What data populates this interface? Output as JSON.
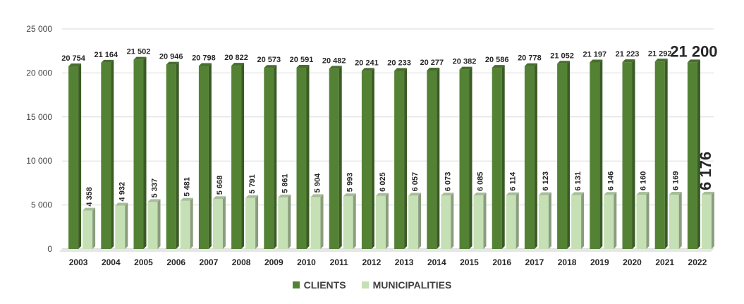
{
  "chart_data": {
    "type": "bar",
    "categories": [
      "2003",
      "2004",
      "2005",
      "2006",
      "2007",
      "2008",
      "2009",
      "2010",
      "2011",
      "2012",
      "2013",
      "2014",
      "2015",
      "2016",
      "2017",
      "2018",
      "2019",
      "2020",
      "2021",
      "2022"
    ],
    "series": [
      {
        "name": "CLIENTS",
        "color": "#548235",
        "values": [
          20754,
          21164,
          21502,
          20946,
          20798,
          20822,
          20573,
          20591,
          20482,
          20241,
          20233,
          20277,
          20382,
          20586,
          20778,
          21052,
          21197,
          21223,
          21292,
          21200
        ],
        "labels": [
          "20 754",
          "21 164",
          "21 502",
          "20 946",
          "20 798",
          "20 822",
          "20 573",
          "20 591",
          "20 482",
          "20 241",
          "20 233",
          "20 277",
          "20 382",
          "20 586",
          "20 778",
          "21 052",
          "21 197",
          "21 223",
          "21 292",
          "21 200"
        ]
      },
      {
        "name": "MUNICIPALITIES",
        "color": "#c5e0b4",
        "values": [
          4358,
          4932,
          5337,
          5481,
          5668,
          5791,
          5861,
          5904,
          5993,
          6025,
          6057,
          6073,
          6085,
          6114,
          6123,
          6131,
          6146,
          6160,
          6169,
          6176
        ],
        "labels": [
          "4 358",
          "4 932",
          "5 337",
          "5 481",
          "5 668",
          "5 791",
          "5 861",
          "5 904",
          "5 993",
          "6 025",
          "6 057",
          "6 073",
          "6 085",
          "6 114",
          "6 123",
          "6 131",
          "6 146",
          "6 160",
          "6 169",
          "6 176"
        ]
      }
    ],
    "y_ticks": [
      "0",
      "5 000",
      "10 000",
      "15 000",
      "20 000",
      "25 000"
    ],
    "ylim": [
      0,
      25000
    ],
    "grid": true,
    "legend_position": "bottom"
  }
}
